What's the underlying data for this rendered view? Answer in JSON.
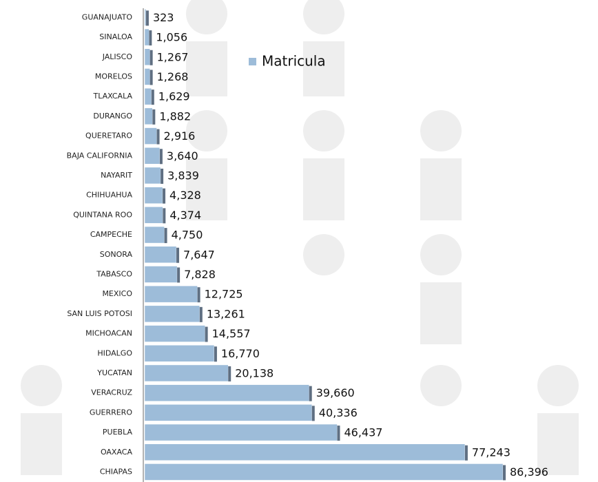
{
  "chart_data": {
    "type": "bar",
    "orientation": "horizontal",
    "categories": [
      "GUANAJUATO",
      "SINALOA",
      "JALISCO",
      "MORELOS",
      "TLAXCALA",
      "DURANGO",
      "QUERETARO",
      "BAJA CALIFORNIA",
      "NAYARIT",
      "CHIHUAHUA",
      "QUINTANA ROO",
      "CAMPECHE",
      "SONORA",
      "TABASCO",
      "MEXICO",
      "SAN LUIS POTOSI",
      "MICHOACAN",
      "HIDALGO",
      "YUCATAN",
      "VERACRUZ",
      "GUERRERO",
      "PUEBLA",
      "OAXACA",
      "CHIAPAS"
    ],
    "series": [
      {
        "name": "Matricula",
        "color": "#9dbcd9",
        "values": [
          323,
          1056,
          1267,
          1268,
          1629,
          1882,
          2916,
          3640,
          3839,
          4328,
          4374,
          4750,
          7647,
          7828,
          12725,
          13261,
          14557,
          16770,
          20138,
          39660,
          40336,
          46437,
          77243,
          86396
        ],
        "value_labels": [
          "323",
          "1,056",
          "1,267",
          "1,268",
          "1,629",
          "1,882",
          "2,916",
          "3,640",
          "3,839",
          "4,328",
          "4,374",
          "4,750",
          "7,647",
          "7,828",
          "12,725",
          "13,261",
          "14,557",
          "16,770",
          "20,138",
          "39,660",
          "40,336",
          "46,437",
          "77,243",
          "86,396"
        ]
      }
    ]
  }
}
